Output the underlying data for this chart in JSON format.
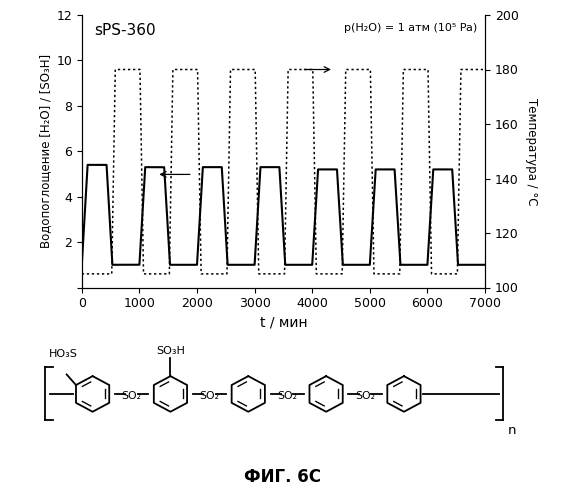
{
  "title_left": "sPS-360",
  "title_right": "p(H₂O) = 1 атм (10⁵ Pa)",
  "ylabel_left": "Водопоглощение [H₂O] / [SO₃H]",
  "ylabel_right": "Температура / °C",
  "xlabel": "t / мин",
  "fig_caption": "ФИГ. 6C",
  "xlim": [
    0,
    7000
  ],
  "ylim_left": [
    0,
    12
  ],
  "ylim_right": [
    100,
    200
  ],
  "yticks_left": [
    0,
    2,
    4,
    6,
    8,
    10,
    12
  ],
  "yticks_right": [
    100,
    120,
    140,
    160,
    180,
    200
  ],
  "xticks": [
    0,
    1000,
    2000,
    3000,
    4000,
    5000,
    6000,
    7000
  ],
  "water_high_vals": [
    5.4,
    5.3,
    5.3,
    5.3,
    5.2,
    5.2,
    5.2
  ],
  "water_low": 1.0,
  "temp_high": 180,
  "temp_low": 105,
  "cycle_period": 1000,
  "water_plateau": 330,
  "water_rise": 100,
  "temp_plateau": 430,
  "temp_rise": 60
}
